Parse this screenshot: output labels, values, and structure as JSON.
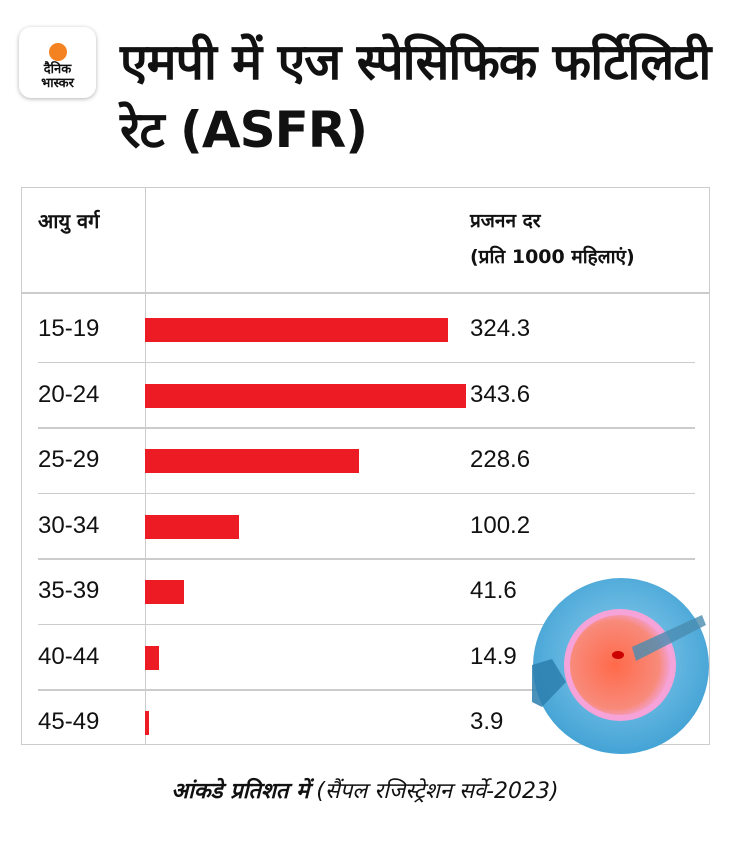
{
  "logo": {
    "line1": "दैनिक",
    "line2": "भास्कर"
  },
  "title": "एमपी में एज स्पेसिफिक फर्टिलिटी रेट (ASFR)",
  "chart_data": {
    "type": "bar",
    "title": "एमपी में एज स्पेसिफिक फर्टिलिटी रेट (ASFR)",
    "col_header_category": "आयु वर्ग",
    "col_header_value": "प्रजनन दर",
    "col_header_unit": "(प्रति 1000 महिलाएं)",
    "categories": [
      "15-19",
      "20-24",
      "25-29",
      "30-34",
      "35-39",
      "40-44",
      "45-49"
    ],
    "values": [
      324.3,
      343.6,
      228.6,
      100.2,
      41.6,
      14.9,
      3.9
    ],
    "value_labels": [
      "324.3",
      "343.6",
      "228.6",
      "100.2",
      "41.6",
      "14.9",
      "3.9"
    ],
    "orientation": "horizontal",
    "xlim": [
      0,
      343.6
    ],
    "bar_color": "#ed1c24"
  },
  "footer": {
    "bold": "आंकडे प्रतिशत में",
    "source": "(सैंपल रजिस्ट्रेशन सर्वे-2023)"
  }
}
